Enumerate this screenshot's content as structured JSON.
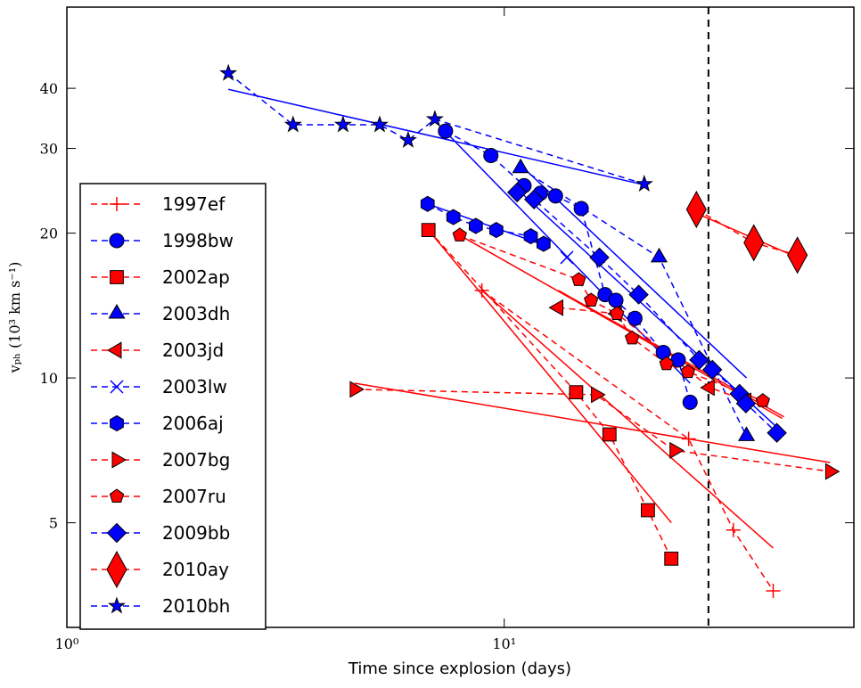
{
  "chart_data": {
    "type": "scatter",
    "xlabel": "Time since explosion (days)",
    "ylabel": "vₚₕ (10³ km s⁻¹)",
    "xlog": true,
    "ylog": true,
    "xlim": [
      1,
      63
    ],
    "ylim": [
      3.03,
      59
    ],
    "xticks": [
      {
        "value": 1,
        "label": "10⁰"
      },
      {
        "value": 10,
        "label": "10¹"
      }
    ],
    "yticks": [
      5,
      10,
      20,
      30,
      40
    ],
    "legend": "center left",
    "reference_line": {
      "x": 29.3,
      "style": "dashed",
      "color": "#000000"
    },
    "series": [
      {
        "name": "1997ef",
        "color": "#ff0000",
        "marker": "plus",
        "x": [
          8.89,
          26.4,
          33.4,
          41.2
        ],
        "y": [
          15.2,
          7.47,
          4.83,
          3.61
        ],
        "fit": {
          "x": [
            8.89,
            41.2
          ],
          "y": [
            15.2,
            4.43
          ]
        }
      },
      {
        "name": "1998bw",
        "color": "#0000ff",
        "marker": "circle",
        "x": [
          7.34,
          9.32,
          11.1,
          12.1,
          13.1,
          15.0,
          17.0,
          18.0,
          19.9,
          23.1,
          25.0,
          26.6
        ],
        "y": [
          32.6,
          29.0,
          25.1,
          24.2,
          23.9,
          22.5,
          14.9,
          14.5,
          13.3,
          11.3,
          10.9,
          8.9
        ],
        "fit": {
          "x": [
            7.34,
            26.6
          ],
          "y": [
            32.5,
            9.75
          ]
        }
      },
      {
        "name": "2002ap",
        "color": "#ff0000",
        "marker": "square",
        "x": [
          6.71,
          14.6,
          17.4,
          21.3,
          24.1
        ],
        "y": [
          20.3,
          9.34,
          7.63,
          5.31,
          4.21
        ],
        "fit": {
          "x": [
            6.71,
            24.1
          ],
          "y": [
            20.3,
            5.0
          ]
        }
      },
      {
        "name": "2003dh",
        "color": "#0000ff",
        "marker": "triangle-up",
        "x": [
          10.9,
          22.6,
          35.8
        ],
        "y": [
          27.3,
          17.8,
          7.57
        ],
        "fit": {
          "x": [
            10.9,
            35.8
          ],
          "y": [
            27.7,
            10.0
          ]
        }
      },
      {
        "name": "2003jd",
        "color": "#ff0000",
        "marker": "triangle-left",
        "x": [
          13.3,
          18.1,
          29.5,
          35.8
        ],
        "y": [
          14.0,
          13.6,
          9.55,
          8.96
        ],
        "fit": {
          "x": [
            13.3,
            43.6
          ],
          "y": [
            15.2,
            8.3
          ]
        }
      },
      {
        "name": "2003lw",
        "color": "#0000ff",
        "marker": "x",
        "x": [
          13.9
        ],
        "y": [
          17.8
        ]
      },
      {
        "name": "2006aj",
        "color": "#0000ff",
        "marker": "hexagon",
        "x": [
          6.68,
          7.65,
          8.61,
          9.59,
          11.5,
          12.3
        ],
        "y": [
          23.0,
          21.6,
          20.7,
          20.3,
          19.7,
          19.0
        ],
        "fit": {
          "x": [
            6.68,
            12.3
          ],
          "y": [
            23.0,
            18.9
          ]
        }
      },
      {
        "name": "2007bg",
        "color": "#ff0000",
        "marker": "triangle-right",
        "x": [
          4.55,
          16.2,
          24.5,
          55.6
        ],
        "y": [
          9.47,
          9.23,
          7.07,
          6.39
        ],
        "fit": {
          "x": [
            4.55,
            55.6
          ],
          "y": [
            9.75,
            6.67
          ]
        }
      },
      {
        "name": "2007ru",
        "color": "#ff0000",
        "marker": "pentagon",
        "x": [
          7.91,
          14.8,
          15.8,
          18.1,
          19.6,
          23.5,
          26.3,
          39.0
        ],
        "y": [
          19.8,
          16.0,
          14.5,
          13.6,
          12.1,
          10.7,
          10.3,
          8.96
        ],
        "fit": {
          "x": [
            7.91,
            43.2
          ],
          "y": [
            19.8,
            8.24
          ]
        }
      },
      {
        "name": "2009bb",
        "color": "#0000ff",
        "marker": "diamond",
        "x": [
          10.7,
          11.7,
          16.5,
          20.3,
          27.9,
          29.9,
          34.5,
          35.7,
          42.0
        ],
        "y": [
          24.3,
          23.5,
          17.8,
          14.9,
          10.9,
          10.4,
          9.27,
          8.85,
          7.69
        ],
        "fit": {
          "x": [
            10.7,
            42.0
          ],
          "y": [
            24.7,
            7.9
          ]
        }
      },
      {
        "name": "2010ay",
        "color": "#ff0000",
        "marker": "big-diamond",
        "x": [
          27.5,
          37.2,
          46.8
        ],
        "y": [
          22.4,
          19.1,
          18.0
        ],
        "fit": {
          "x": [
            27.5,
            46.8
          ],
          "y": [
            22.0,
            17.8
          ]
        }
      },
      {
        "name": "2010bh",
        "color": "#0000ff",
        "marker": "star",
        "x": [
          2.34,
          3.29,
          4.28,
          5.19,
          6.03,
          6.94,
          20.9
        ],
        "y": [
          43.0,
          33.6,
          33.6,
          33.6,
          31.2,
          34.5,
          25.3
        ],
        "fit": {
          "x": [
            2.34,
            20.9
          ],
          "y": [
            39.8,
            25.2
          ]
        }
      }
    ]
  }
}
